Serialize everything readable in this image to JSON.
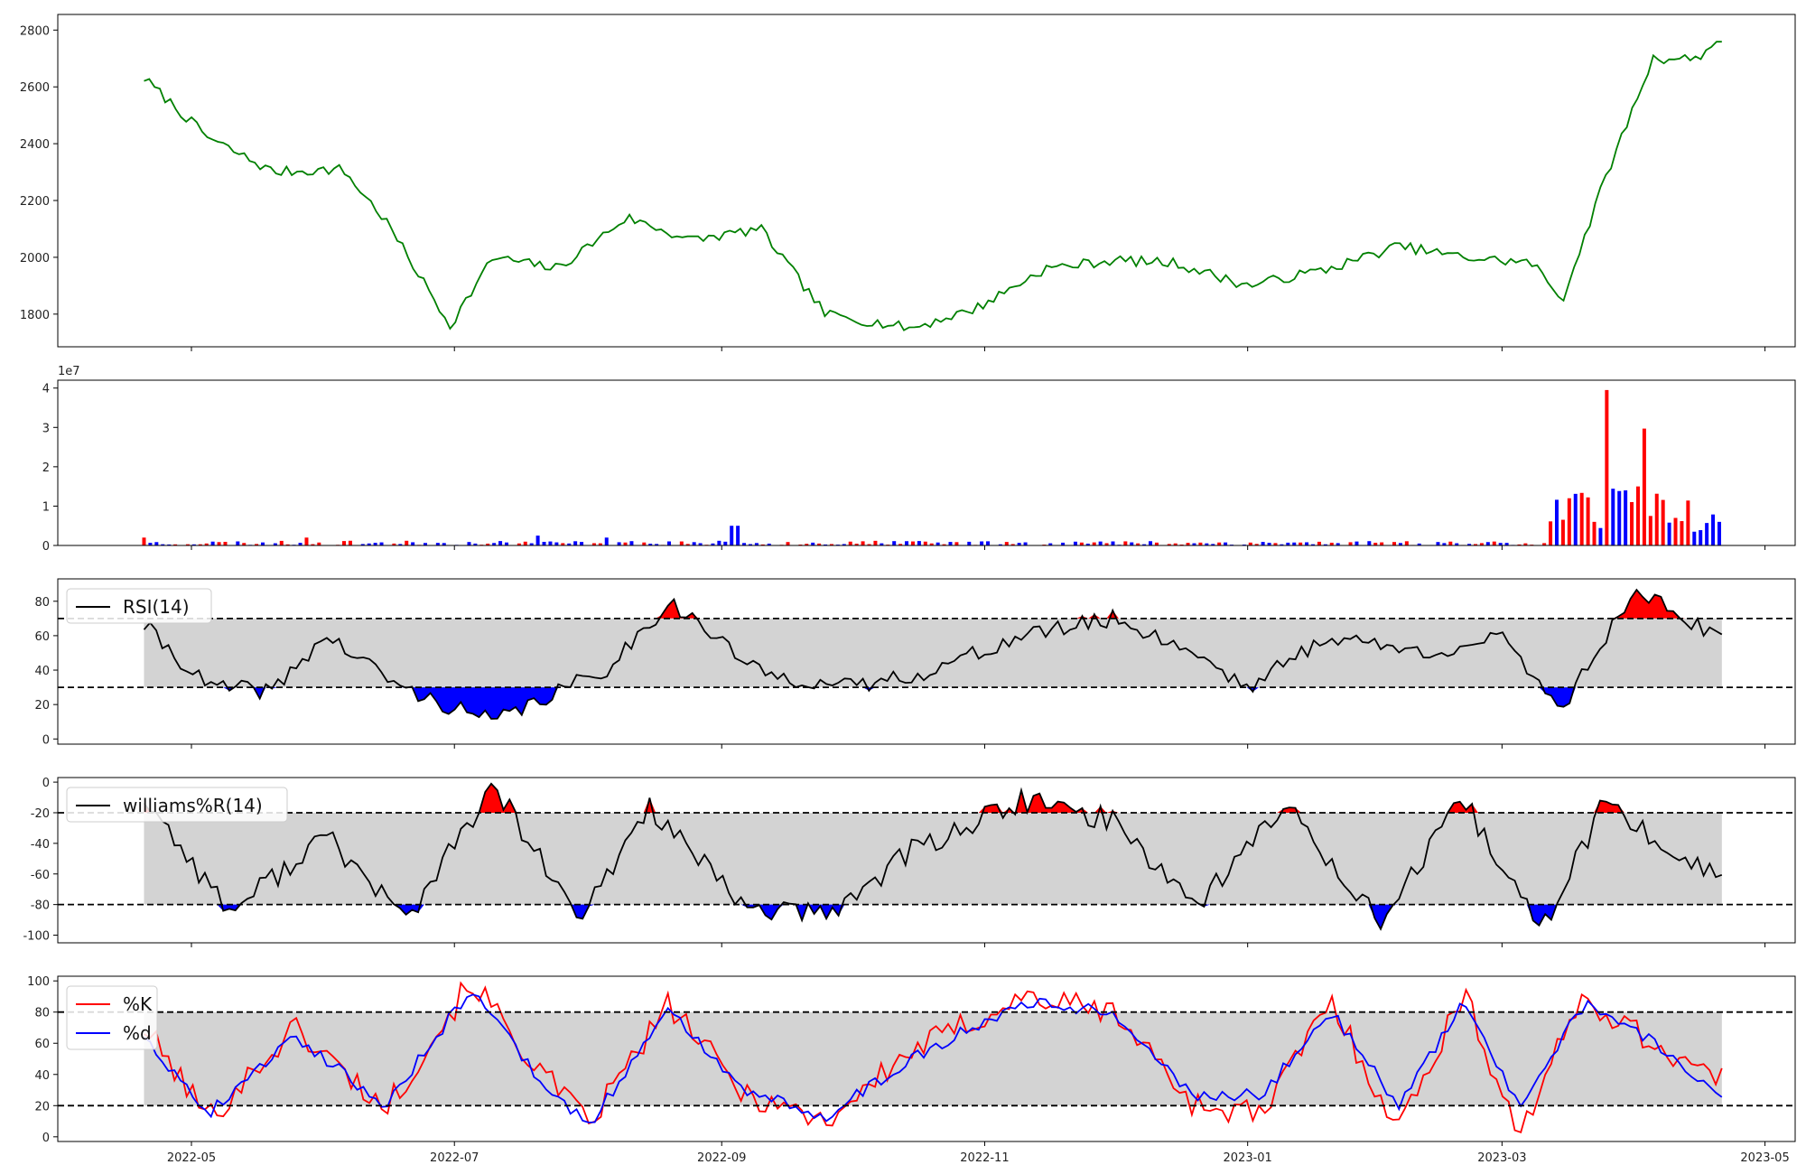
{
  "x_axis": {
    "ticks": [
      "2022-05",
      "2022-07",
      "2022-09",
      "2022-11",
      "2023-01",
      "2023-03",
      "2023-05"
    ],
    "range": [
      "2022-03-31",
      "2023-05-08"
    ],
    "data_range": [
      "2022-04-20",
      "2023-04-21"
    ]
  },
  "colors": {
    "price": "#008000",
    "up": "#ff0000",
    "down": "#0000ff",
    "band": "#d3d3d3",
    "line": "#000000"
  },
  "chart_data": [
    {
      "type": "line",
      "name": "price",
      "ylim": [
        1685,
        2855
      ],
      "y_ticks": [
        1800,
        2000,
        2200,
        2400,
        2600,
        2800
      ],
      "x": [
        "2022-04-20",
        "2022-05-05",
        "2022-05-20",
        "2022-06-05",
        "2022-06-15",
        "2022-06-30",
        "2022-07-10",
        "2022-07-25",
        "2022-08-10",
        "2022-08-25",
        "2022-09-10",
        "2022-09-25",
        "2022-10-15",
        "2022-10-30",
        "2022-11-15",
        "2022-12-01",
        "2022-12-15",
        "2023-01-01",
        "2023-01-20",
        "2023-02-05",
        "2023-02-20",
        "2023-03-08",
        "2023-03-15",
        "2023-03-25",
        "2023-04-05",
        "2023-04-15",
        "2023-04-21"
      ],
      "values": [
        2630,
        2420,
        2300,
        2310,
        2130,
        1760,
        2000,
        1960,
        2140,
        2060,
        2100,
        1800,
        1750,
        1820,
        1960,
        1990,
        1980,
        1900,
        1960,
        2040,
        2000,
        1980,
        1850,
        2280,
        2700,
        2700,
        2770
      ]
    },
    {
      "type": "bar",
      "name": "volume",
      "offset_label": "1e7",
      "ylim": [
        0,
        4.2
      ],
      "y_ticks": [
        0,
        1,
        2,
        3,
        4
      ],
      "x": [
        "2022-04-20",
        "2022-05-28",
        "2022-07-20",
        "2022-08-05",
        "2022-09-04",
        "2023-03-17",
        "2023-03-22",
        "2023-03-25",
        "2023-03-30",
        "2023-04-01",
        "2023-04-03",
        "2023-04-05",
        "2023-04-10",
        "2023-04-15",
        "2023-04-21"
      ],
      "values": [
        0.2,
        0.2,
        0.25,
        0.2,
        0.5,
        1.2,
        0.6,
        3.95,
        1.4,
        1.5,
        2.97,
        0.75,
        0.7,
        0.35,
        0.6
      ]
    },
    {
      "type": "line",
      "name": "RSI",
      "legend": [
        "RSI(14)"
      ],
      "ylim": [
        -3,
        93
      ],
      "y_ticks": [
        0,
        20,
        40,
        60,
        80
      ],
      "thresholds": [
        30,
        70
      ],
      "x": [
        "2022-04-20",
        "2022-05-05",
        "2022-05-20",
        "2022-06-01",
        "2022-06-20",
        "2022-07-10",
        "2022-08-05",
        "2022-08-20",
        "2022-09-10",
        "2022-10-01",
        "2022-10-20",
        "2022-11-10",
        "2022-12-01",
        "2022-12-20",
        "2023-01-01",
        "2023-01-20",
        "2023-02-10",
        "2023-03-01",
        "2023-03-15",
        "2023-04-01",
        "2023-04-21"
      ],
      "values": [
        66,
        30,
        28,
        60,
        28,
        10,
        40,
        80,
        38,
        30,
        40,
        60,
        70,
        50,
        30,
        60,
        50,
        58,
        18,
        88,
        56
      ]
    },
    {
      "type": "line",
      "name": "williams%R",
      "legend": [
        "williams%R(14)"
      ],
      "ylim": [
        -105,
        3
      ],
      "y_ticks": [
        -100,
        -80,
        -60,
        -40,
        -20,
        0
      ],
      "thresholds": [
        -80,
        -20
      ],
      "x": [
        "2022-04-20",
        "2022-05-10",
        "2022-06-01",
        "2022-06-20",
        "2022-07-10",
        "2022-07-30",
        "2022-08-15",
        "2022-09-05",
        "2022-09-25",
        "2022-10-15",
        "2022-11-10",
        "2022-12-01",
        "2022-12-20",
        "2023-01-10",
        "2023-02-01",
        "2023-02-20",
        "2023-03-10",
        "2023-03-25",
        "2023-04-05",
        "2023-04-21"
      ],
      "values": [
        -10,
        -85,
        -35,
        -90,
        -2,
        -92,
        -15,
        -80,
        -88,
        -45,
        -12,
        -25,
        -80,
        -15,
        -92,
        -12,
        -98,
        -12,
        -38,
        -62
      ]
    },
    {
      "type": "line",
      "name": "stochastic",
      "ylim": [
        -3,
        103
      ],
      "y_ticks": [
        0,
        20,
        40,
        60,
        80,
        100
      ],
      "thresholds": [
        20,
        80
      ],
      "series": [
        {
          "name": "%K",
          "x": [
            "2022-04-20",
            "2022-05-05",
            "2022-05-25",
            "2022-06-15",
            "2022-07-05",
            "2022-07-20",
            "2022-08-01",
            "2022-08-20",
            "2022-09-05",
            "2022-09-25",
            "2022-10-15",
            "2022-11-10",
            "2022-12-01",
            "2022-12-20",
            "2023-01-05",
            "2023-01-20",
            "2023-02-05",
            "2023-02-20",
            "2023-03-05",
            "2023-03-20",
            "2023-04-05",
            "2023-04-21"
          ],
          "values": [
            70,
            12,
            70,
            18,
            100,
            45,
            8,
            85,
            30,
            10,
            55,
            90,
            80,
            20,
            15,
            88,
            5,
            92,
            2,
            90,
            60,
            35
          ]
        },
        {
          "name": "%d",
          "x": [
            "2022-04-20",
            "2022-05-05",
            "2022-05-25",
            "2022-06-15",
            "2022-07-05",
            "2022-07-20",
            "2022-08-01",
            "2022-08-20",
            "2022-09-05",
            "2022-09-25",
            "2022-10-15",
            "2022-11-10",
            "2022-12-01",
            "2022-12-20",
            "2023-01-05",
            "2023-01-20",
            "2023-02-05",
            "2023-02-20",
            "2023-03-05",
            "2023-03-20",
            "2023-04-05",
            "2023-04-21"
          ],
          "values": [
            65,
            15,
            65,
            20,
            95,
            40,
            7,
            82,
            32,
            13,
            50,
            87,
            80,
            25,
            28,
            82,
            20,
            86,
            20,
            85,
            62,
            25
          ]
        }
      ]
    }
  ]
}
